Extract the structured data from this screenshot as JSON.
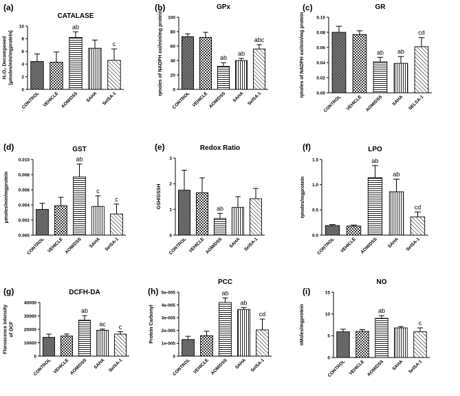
{
  "colors": {
    "ink": "#000000",
    "background": "#ffffff",
    "dark_fill": "#555555",
    "checker_fill": "#888888"
  },
  "chart_data": [
    {
      "type": "bar",
      "letter": "(a)",
      "title": "CATALASE",
      "ylabel": [
        "H₂O₂ Decomposed",
        "(μmoles/min/mgprotein)"
      ],
      "categories": [
        "CONTROL",
        "VEHICLE",
        "AOM/DSS",
        "SAHA",
        "SelSA-1"
      ],
      "values": [
        4.4,
        4.3,
        8.2,
        6.5,
        4.6
      ],
      "errors": [
        1.2,
        1.6,
        0.9,
        1.3,
        1.8
      ],
      "annotations": [
        "",
        "",
        "ab",
        "",
        "c"
      ],
      "ylim": [
        0,
        10
      ],
      "yticks": [
        "0",
        "2",
        "4",
        "6",
        "8",
        "10"
      ]
    },
    {
      "type": "bar",
      "letter": "(b)",
      "title": "GPx",
      "ylabel": [
        "ηmoles of NADPH oxi/min/mg protein"
      ],
      "categories": [
        "CONTROL",
        "VEHICLE",
        "AOM/DSS",
        "SAHA",
        "SelSA-1"
      ],
      "values": [
        73,
        72,
        32,
        40,
        56
      ],
      "errors": [
        4,
        7,
        5,
        3,
        6
      ],
      "annotations": [
        "",
        "",
        "ab",
        "ab",
        "abc"
      ],
      "ylim": [
        0,
        100
      ],
      "yticks": [
        "0",
        "20",
        "40",
        "60",
        "80",
        "100"
      ]
    },
    {
      "type": "bar",
      "letter": "(c)",
      "title": "GR",
      "ylabel": [
        "ηmoles of NADPH oxi/min/mg protein"
      ],
      "categories": [
        "CONTROL",
        "VEHICLE",
        "AOM/DSS",
        "SAHA",
        "SELSA-1"
      ],
      "values": [
        0.08,
        0.077,
        0.041,
        0.039,
        0.061
      ],
      "errors": [
        0.008,
        0.005,
        0.006,
        0.009,
        0.012
      ],
      "annotations": [
        "",
        "",
        "ab",
        "ab",
        "cd"
      ],
      "ylim": [
        0,
        0.1
      ],
      "yticks": [
        "0.00",
        "0.02",
        "0.04",
        "0.06",
        "0.08",
        "0.10"
      ]
    },
    {
      "type": "bar",
      "letter": "(d)",
      "title": "GST",
      "ylabel": [
        "μmoles/min/mgprotein"
      ],
      "categories": [
        "CONTROL",
        "VEHICLE",
        "AOM/DSS",
        "SAHA",
        "SelSA-1"
      ],
      "values": [
        0.0034,
        0.0039,
        0.0077,
        0.0038,
        0.0028
      ],
      "errors": [
        0.0008,
        0.0011,
        0.0017,
        0.0014,
        0.0013
      ],
      "annotations": [
        "",
        "",
        "ab",
        "c",
        "c"
      ],
      "ylim": [
        0,
        0.01
      ],
      "yticks": [
        "0.000",
        "0.002",
        "0.004",
        "0.006",
        "0.008",
        "0.010"
      ]
    },
    {
      "type": "bar",
      "letter": "(e)",
      "title": "Redox Ratio",
      "ylabel": [
        "GSH/GSSH"
      ],
      "categories": [
        "CONTROL",
        "VEHICLE",
        "AOM/DSS",
        "SAHA",
        "SelSA-1"
      ],
      "values": [
        1.75,
        1.65,
        0.65,
        1.08,
        1.42
      ],
      "errors": [
        0.78,
        0.58,
        0.2,
        0.42,
        0.4
      ],
      "annotations": [
        "",
        "",
        "ab",
        "",
        ""
      ],
      "ylim": [
        0,
        3
      ],
      "yticks": [
        "0",
        "1",
        "2",
        "3"
      ]
    },
    {
      "type": "bar",
      "letter": "(f)",
      "title": "LPO",
      "ylabel": [
        "ηmoles/mgprotein"
      ],
      "categories": [
        "CONTROL",
        "VEHICLE",
        "AOM/DSS",
        "SAHA",
        "SelSA-1"
      ],
      "values": [
        0.19,
        0.18,
        1.14,
        0.86,
        0.36
      ],
      "errors": [
        0.02,
        0.02,
        0.24,
        0.25,
        0.1
      ],
      "annotations": [
        "",
        "",
        "ab",
        "ab",
        "cd"
      ],
      "ylim": [
        0,
        1.5
      ],
      "yticks": [
        "0.0",
        "0.5",
        "1.0",
        "1.5"
      ]
    },
    {
      "type": "bar",
      "letter": "(g)",
      "title": "DCFH-DA",
      "ylabel": [
        "Floroscence intensity",
        "of DCF"
      ],
      "categories": [
        "CONTROL",
        "VEHICLE",
        "AOM/DSS",
        "SAHA",
        "SelSA-1"
      ],
      "values": [
        14000,
        15000,
        26800,
        19300,
        16400
      ],
      "errors": [
        2400,
        1500,
        3400,
        900,
        1800
      ],
      "annotations": [
        "",
        "",
        "ab",
        "ac",
        "c"
      ],
      "ylim": [
        0,
        40000
      ],
      "yticks": [
        "0",
        "10000",
        "20000",
        "30000",
        "40000"
      ]
    },
    {
      "type": "bar",
      "letter": "(h)",
      "title": "PCC",
      "ylabel": [
        "Protein Carbonyl"
      ],
      "categories": [
        "CONTROL",
        "VEHICLE",
        "AOM/DSS",
        "SAHA",
        "SelSA-1"
      ],
      "values": [
        1.3e-05,
        1.6e-05,
        4.2e-05,
        3.65e-05,
        2.05e-05
      ],
      "errors": [
        2.5e-06,
        3.5e-06,
        3.5e-06,
        1.5e-06,
        8.5e-06
      ],
      "annotations": [
        "",
        "",
        "ab",
        "ab",
        "cd"
      ],
      "ylim": [
        0,
        5e-05
      ],
      "yticks": [
        "0",
        "1e-005",
        "2e-005",
        "3e-005",
        "4e-005",
        "5e-005"
      ]
    },
    {
      "type": "bar",
      "letter": "(i)",
      "title": "NO",
      "ylabel": [
        "nMoles/mgprotein"
      ],
      "categories": [
        "CONTROL",
        "VEHICLE",
        "AOM/DSS",
        "SAHA",
        "SelSA-1"
      ],
      "values": [
        5.9,
        6.0,
        9.0,
        6.8,
        5.9
      ],
      "errors": [
        0.6,
        0.4,
        0.6,
        0.3,
        0.9
      ],
      "annotations": [
        "",
        "",
        "ab",
        "",
        "c"
      ],
      "ylim": [
        0,
        15
      ],
      "yticks": [
        "0",
        "5",
        "10",
        "15"
      ]
    }
  ]
}
